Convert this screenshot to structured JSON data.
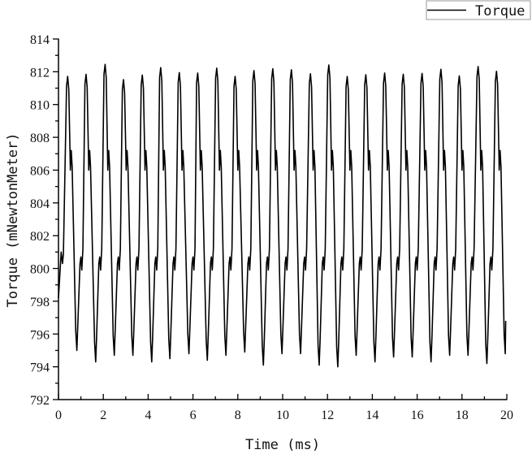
{
  "chart_data": {
    "type": "line",
    "title": "",
    "xlabel": "Time (ms)",
    "ylabel": "Torque (mNewtonMeter)",
    "xlim": [
      0,
      20
    ],
    "ylim": [
      792,
      814
    ],
    "x_ticks": [
      0,
      2,
      4,
      6,
      8,
      10,
      12,
      14,
      16,
      18,
      20
    ],
    "y_ticks": [
      792,
      794,
      796,
      798,
      800,
      802,
      804,
      806,
      808,
      810,
      812,
      814
    ],
    "grid": false,
    "legend": {
      "position": "top-right",
      "entries": [
        "Torque"
      ]
    },
    "series": [
      {
        "name": "Torque",
        "color": "#000000",
        "description": "Periodic torque ripple, period ~0.83 ms; each cycle: peak ~812, shoulder ~806-807, trough ~794-795, shoulder ~800-801",
        "start": {
          "x": 0.0,
          "y": 798.2
        },
        "end": {
          "x": 19.95,
          "y": 796.8
        },
        "peaks": {
          "x": [
            0.41,
            1.23,
            2.08,
            2.9,
            3.74,
            4.56,
            5.39,
            6.21,
            7.06,
            7.88,
            8.72,
            9.56,
            10.39,
            11.24,
            12.06,
            12.88,
            13.71,
            14.55,
            15.38,
            16.22,
            17.06,
            17.88,
            18.72,
            19.54
          ],
          "y": [
            811.72,
            811.84,
            812.45,
            811.52,
            811.8,
            812.25,
            811.95,
            811.92,
            812.22,
            811.72,
            812.07,
            812.18,
            812.12,
            811.88,
            812.41,
            811.71,
            811.82,
            811.92,
            811.85,
            811.9,
            812.15,
            811.75,
            812.32,
            812.03
          ]
        },
        "troughs": {
          "x": [
            0.82,
            1.66,
            2.49,
            3.32,
            4.16,
            4.97,
            5.82,
            6.64,
            7.47,
            8.31,
            9.14,
            9.97,
            10.8,
            11.63,
            12.46,
            13.28,
            14.12,
            14.95,
            15.78,
            16.62,
            17.45,
            18.27,
            19.11,
            19.93
          ],
          "y": [
            795.0,
            794.3,
            794.7,
            794.7,
            794.3,
            794.5,
            794.8,
            794.4,
            794.7,
            794.9,
            794.1,
            794.8,
            794.8,
            794.1,
            794.0,
            794.7,
            794.3,
            794.6,
            794.6,
            794.3,
            794.7,
            794.7,
            794.2,
            794.8
          ]
        }
      }
    ]
  }
}
